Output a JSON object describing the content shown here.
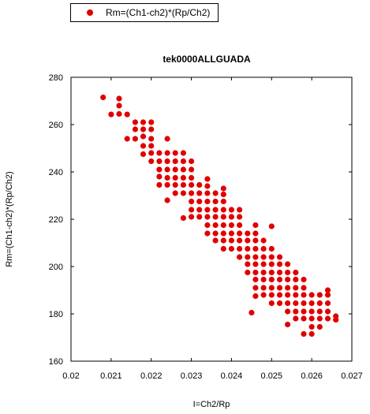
{
  "chart_data": {
    "type": "scatter",
    "title": "tek0000ALLGUADA",
    "xlabel": "I=Ch2/Rp",
    "ylabel": "Rm=(Ch1-ch2)*(Rp/Ch2)",
    "xlim": [
      0.02,
      0.027
    ],
    "ylim": [
      160,
      280
    ],
    "xticks": [
      "0.02",
      "0.021",
      "0.022",
      "0.023",
      "0.024",
      "0.025",
      "0.026",
      "0.027"
    ],
    "yticks": [
      "160",
      "180",
      "200",
      "220",
      "240",
      "260",
      "280"
    ],
    "grid": false,
    "legend_position": "top-left",
    "series": [
      {
        "name": "Rm=(Ch1-ch2)*(Rp/Ch2)",
        "color": "#e00000",
        "points": [
          [
            0.0208,
            271.5
          ],
          [
            0.021,
            264.3
          ],
          [
            0.0212,
            271
          ],
          [
            0.0212,
            268
          ],
          [
            0.0212,
            264.5
          ],
          [
            0.0214,
            264.3
          ],
          [
            0.0214,
            254
          ],
          [
            0.0216,
            261
          ],
          [
            0.0216,
            258
          ],
          [
            0.0216,
            254
          ],
          [
            0.0218,
            261
          ],
          [
            0.0218,
            258
          ],
          [
            0.0218,
            255
          ],
          [
            0.0218,
            251
          ],
          [
            0.0218,
            247.5
          ],
          [
            0.022,
            261
          ],
          [
            0.022,
            258
          ],
          [
            0.022,
            254
          ],
          [
            0.022,
            251
          ],
          [
            0.022,
            248
          ],
          [
            0.022,
            244.5
          ],
          [
            0.0222,
            248
          ],
          [
            0.0222,
            244.5
          ],
          [
            0.0222,
            241
          ],
          [
            0.0222,
            238
          ],
          [
            0.0222,
            234.5
          ],
          [
            0.0224,
            254
          ],
          [
            0.0224,
            248
          ],
          [
            0.0224,
            244.5
          ],
          [
            0.0224,
            241
          ],
          [
            0.0224,
            237.5
          ],
          [
            0.0224,
            234.5
          ],
          [
            0.0224,
            228
          ],
          [
            0.0226,
            248
          ],
          [
            0.0226,
            244.5
          ],
          [
            0.0226,
            241
          ],
          [
            0.0226,
            237.5
          ],
          [
            0.0226,
            234.5
          ],
          [
            0.0226,
            231
          ],
          [
            0.0228,
            248
          ],
          [
            0.0228,
            244.5
          ],
          [
            0.0228,
            241
          ],
          [
            0.0228,
            237.5
          ],
          [
            0.0228,
            234.5
          ],
          [
            0.0228,
            231
          ],
          [
            0.0228,
            220.5
          ],
          [
            0.023,
            244.5
          ],
          [
            0.023,
            241
          ],
          [
            0.023,
            237.5
          ],
          [
            0.023,
            234.5
          ],
          [
            0.023,
            231
          ],
          [
            0.023,
            227.5
          ],
          [
            0.023,
            224
          ],
          [
            0.023,
            221
          ],
          [
            0.0232,
            234.5
          ],
          [
            0.0232,
            231
          ],
          [
            0.0232,
            227.5
          ],
          [
            0.0232,
            224
          ],
          [
            0.0232,
            221
          ],
          [
            0.0234,
            237
          ],
          [
            0.0234,
            234
          ],
          [
            0.0234,
            231
          ],
          [
            0.0234,
            227.5
          ],
          [
            0.0234,
            224
          ],
          [
            0.0234,
            221
          ],
          [
            0.0234,
            217.5
          ],
          [
            0.0234,
            214
          ],
          [
            0.0236,
            231
          ],
          [
            0.0236,
            227.5
          ],
          [
            0.0236,
            224
          ],
          [
            0.0236,
            221
          ],
          [
            0.0236,
            217.5
          ],
          [
            0.0236,
            214
          ],
          [
            0.0236,
            211
          ],
          [
            0.0238,
            227.5
          ],
          [
            0.0238,
            224
          ],
          [
            0.0238,
            221
          ],
          [
            0.0238,
            217.5
          ],
          [
            0.0238,
            214
          ],
          [
            0.0238,
            211
          ],
          [
            0.0238,
            207.5
          ],
          [
            0.0238,
            230.5
          ],
          [
            0.0238,
            233
          ],
          [
            0.024,
            224
          ],
          [
            0.024,
            221
          ],
          [
            0.024,
            217.5
          ],
          [
            0.024,
            214
          ],
          [
            0.024,
            211
          ],
          [
            0.024,
            207.5
          ],
          [
            0.0242,
            224
          ],
          [
            0.0242,
            221
          ],
          [
            0.0242,
            217.5
          ],
          [
            0.0242,
            214
          ],
          [
            0.0242,
            211
          ],
          [
            0.0242,
            207.5
          ],
          [
            0.0242,
            204
          ],
          [
            0.0244,
            214
          ],
          [
            0.0244,
            211
          ],
          [
            0.0244,
            207.5
          ],
          [
            0.0244,
            204
          ],
          [
            0.0244,
            201
          ],
          [
            0.0244,
            197.5
          ],
          [
            0.0246,
            217.5
          ],
          [
            0.0246,
            214
          ],
          [
            0.0246,
            211
          ],
          [
            0.0246,
            207.5
          ],
          [
            0.0246,
            204
          ],
          [
            0.0246,
            201
          ],
          [
            0.0246,
            197.5
          ],
          [
            0.0246,
            194.5
          ],
          [
            0.0246,
            191
          ],
          [
            0.0246,
            187.5
          ],
          [
            0.0245,
            180.5
          ],
          [
            0.0248,
            211
          ],
          [
            0.0248,
            207.5
          ],
          [
            0.0248,
            204
          ],
          [
            0.0248,
            201
          ],
          [
            0.0248,
            197.5
          ],
          [
            0.0248,
            194.5
          ],
          [
            0.0248,
            191
          ],
          [
            0.0248,
            188
          ],
          [
            0.025,
            217
          ],
          [
            0.025,
            207.5
          ],
          [
            0.025,
            204
          ],
          [
            0.025,
            201
          ],
          [
            0.025,
            197.5
          ],
          [
            0.025,
            194.5
          ],
          [
            0.025,
            191
          ],
          [
            0.025,
            188
          ],
          [
            0.025,
            184.5
          ],
          [
            0.0252,
            204
          ],
          [
            0.0252,
            201
          ],
          [
            0.0252,
            197.5
          ],
          [
            0.0252,
            194.5
          ],
          [
            0.0252,
            191
          ],
          [
            0.0252,
            188
          ],
          [
            0.0252,
            184.5
          ],
          [
            0.0254,
            201
          ],
          [
            0.0254,
            197.5
          ],
          [
            0.0254,
            194.5
          ],
          [
            0.0254,
            191
          ],
          [
            0.0254,
            188
          ],
          [
            0.0254,
            184.5
          ],
          [
            0.0254,
            181
          ],
          [
            0.0254,
            175.5
          ],
          [
            0.0256,
            197.5
          ],
          [
            0.0256,
            194.5
          ],
          [
            0.0256,
            191
          ],
          [
            0.0256,
            188
          ],
          [
            0.0256,
            184.5
          ],
          [
            0.0256,
            181
          ],
          [
            0.0256,
            178
          ],
          [
            0.0258,
            194.5
          ],
          [
            0.0258,
            191
          ],
          [
            0.0258,
            188
          ],
          [
            0.0258,
            184.5
          ],
          [
            0.0258,
            181
          ],
          [
            0.0258,
            178
          ],
          [
            0.0258,
            171.5
          ],
          [
            0.026,
            188
          ],
          [
            0.026,
            184.5
          ],
          [
            0.026,
            181
          ],
          [
            0.026,
            178
          ],
          [
            0.026,
            174.5
          ],
          [
            0.026,
            171.5
          ],
          [
            0.0262,
            188
          ],
          [
            0.0262,
            184.5
          ],
          [
            0.0262,
            181
          ],
          [
            0.0262,
            178
          ],
          [
            0.0262,
            174.5
          ],
          [
            0.0264,
            190
          ],
          [
            0.0264,
            188
          ],
          [
            0.0264,
            184.5
          ],
          [
            0.0264,
            181
          ],
          [
            0.0264,
            178
          ],
          [
            0.0266,
            179
          ],
          [
            0.0266,
            177.5
          ]
        ]
      }
    ]
  }
}
